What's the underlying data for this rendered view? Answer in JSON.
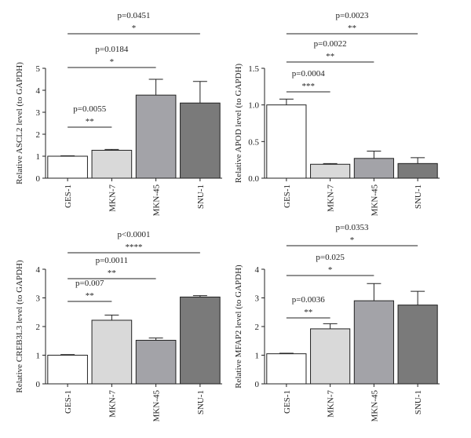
{
  "chart_data": [
    {
      "type": "bar",
      "categories": [
        "GES-1",
        "MKN-7",
        "MKN-45",
        "SNU-1"
      ],
      "values": [
        1.0,
        1.27,
        3.78,
        3.42
      ],
      "errors": [
        0.02,
        0.04,
        0.72,
        0.98
      ],
      "colors": [
        "#ffffff",
        "#d9d9d9",
        "#a3a3a8",
        "#7a7a7a"
      ],
      "ylabel": "Relative ASCL2 level (to GAPDH)",
      "ylim": [
        0,
        5
      ],
      "yticks": [
        0,
        1,
        2,
        3,
        4,
        5
      ],
      "ytick_labels": [
        "0",
        "1",
        "2",
        "3",
        "4",
        "5"
      ],
      "comparisons": [
        {
          "from": 0,
          "to": 1,
          "p": "p=0.0055",
          "stars": "**"
        },
        {
          "from": 0,
          "to": 2,
          "p": "p=0.0184",
          "stars": "*"
        },
        {
          "from": 0,
          "to": 3,
          "p": "p=0.0451",
          "stars": "*"
        }
      ]
    },
    {
      "type": "bar",
      "categories": [
        "GES-1",
        "MKN-7",
        "MKN-45",
        "SNU-1"
      ],
      "values": [
        1.0,
        0.19,
        0.27,
        0.2
      ],
      "errors": [
        0.08,
        0.01,
        0.1,
        0.08
      ],
      "colors": [
        "#ffffff",
        "#d9d9d9",
        "#a3a3a8",
        "#7a7a7a"
      ],
      "ylabel": "Relative APOD level (to GAPDH)",
      "ylim": [
        0,
        1.5
      ],
      "yticks": [
        0,
        0.5,
        1.0,
        1.5
      ],
      "ytick_labels": [
        "0.0",
        "0.5",
        "1.0",
        "1.5"
      ],
      "comparisons": [
        {
          "from": 0,
          "to": 1,
          "p": "p=0.0004",
          "stars": "***"
        },
        {
          "from": 0,
          "to": 2,
          "p": "p=0.0022",
          "stars": "**"
        },
        {
          "from": 0,
          "to": 3,
          "p": "p=0.0023",
          "stars": "**"
        }
      ]
    },
    {
      "type": "bar",
      "categories": [
        "GES-1",
        "MKN-7",
        "MKN-45",
        "SNU-1"
      ],
      "values": [
        1.0,
        2.22,
        1.52,
        3.03
      ],
      "errors": [
        0.02,
        0.18,
        0.08,
        0.05
      ],
      "colors": [
        "#ffffff",
        "#d9d9d9",
        "#a3a3a8",
        "#7a7a7a"
      ],
      "ylabel": "Relative CREB3L3 level (to GAPDH)",
      "ylim": [
        0,
        4
      ],
      "yticks": [
        0,
        1,
        2,
        3,
        4
      ],
      "ytick_labels": [
        "0",
        "1",
        "2",
        "3",
        "4"
      ],
      "comparisons": [
        {
          "from": 0,
          "to": 1,
          "p": "p=0.007",
          "stars": "**"
        },
        {
          "from": 0,
          "to": 2,
          "p": "p=0.0011",
          "stars": "**"
        },
        {
          "from": 0,
          "to": 3,
          "p": "p<0.0001",
          "stars": "****"
        }
      ]
    },
    {
      "type": "bar",
      "categories": [
        "GES-1",
        "MKN-7",
        "MKN-45",
        "SNU-1"
      ],
      "values": [
        1.05,
        1.92,
        2.9,
        2.75
      ],
      "errors": [
        0.02,
        0.18,
        0.6,
        0.48
      ],
      "colors": [
        "#ffffff",
        "#d9d9d9",
        "#a3a3a8",
        "#7a7a7a"
      ],
      "ylabel": "Relative MFAP2 level (to GAPDH)",
      "ylim": [
        0,
        4
      ],
      "yticks": [
        0,
        1,
        2,
        3,
        4
      ],
      "ytick_labels": [
        "0",
        "1",
        "2",
        "3",
        "4"
      ],
      "comparisons": [
        {
          "from": 0,
          "to": 1,
          "p": "p=0.0036",
          "stars": "**"
        },
        {
          "from": 0,
          "to": 2,
          "p": "p=0.025",
          "stars": "*"
        },
        {
          "from": 0,
          "to": 3,
          "p": "p=0.0353",
          "stars": "*"
        }
      ]
    }
  ]
}
